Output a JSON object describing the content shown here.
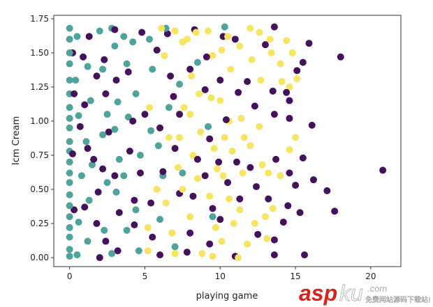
{
  "chart_data": {
    "type": "scatter",
    "title": "",
    "xlabel": "playing game",
    "ylabel": "Icm Cream",
    "xlim": [
      -1.05,
      22
    ],
    "ylim": [
      -0.066,
      1.775
    ],
    "xticks": [
      "0",
      "5",
      "10",
      "15",
      "20"
    ],
    "xtick_values": [
      0,
      5,
      10,
      15,
      20
    ],
    "yticks": [
      "0.00",
      "0.25",
      "0.50",
      "0.75",
      "1.00",
      "1.25",
      "1.50",
      "1.75"
    ],
    "ytick_values": [
      0,
      0.25,
      0.5,
      0.75,
      1.0,
      1.25,
      1.5,
      1.75
    ],
    "grid": false,
    "legend": "none",
    "series": [
      {
        "color": "#4ea39d",
        "points": [
          [
            0,
            1.68
          ],
          [
            0,
            1.6
          ],
          [
            0,
            1.5
          ],
          [
            0,
            1.42
          ],
          [
            0,
            1.3
          ],
          [
            0,
            1.2
          ],
          [
            0,
            1.1
          ],
          [
            0,
            1.02
          ],
          [
            0,
            0.95
          ],
          [
            0,
            0.85
          ],
          [
            0,
            0.78
          ],
          [
            0,
            0.7
          ],
          [
            0,
            0.62
          ],
          [
            0,
            0.55
          ],
          [
            0,
            0.46
          ],
          [
            0,
            0.38
          ],
          [
            0,
            0.3
          ],
          [
            0,
            0.22
          ],
          [
            0,
            0.15
          ],
          [
            0,
            0.06
          ],
          [
            0,
            0.01
          ],
          [
            0.5,
            1.62
          ],
          [
            0.4,
            1.3
          ],
          [
            0.6,
            1.04
          ],
          [
            0.8,
            0.6
          ],
          [
            0.6,
            0.26
          ],
          [
            0.5,
            0.02
          ],
          [
            1.2,
            1.4
          ],
          [
            1.4,
            1.15
          ],
          [
            1.1,
            0.85
          ],
          [
            1.5,
            0.68
          ],
          [
            1.3,
            0.42
          ],
          [
            1.2,
            0.12
          ],
          [
            2.0,
            1.66
          ],
          [
            2.2,
            1.38
          ],
          [
            2.5,
            1.05
          ],
          [
            2.2,
            0.9
          ],
          [
            2.5,
            0.55
          ],
          [
            2.3,
            0.2
          ],
          [
            2.8,
            1.68
          ],
          [
            3.0,
            1.55
          ],
          [
            3.2,
            1.14
          ],
          [
            3.0,
            0.94
          ],
          [
            3.3,
            0.72
          ],
          [
            3.1,
            0.48
          ],
          [
            2.8,
            0.03
          ],
          [
            3.6,
            1.62
          ],
          [
            3.8,
            1.42
          ],
          [
            3.9,
            1.03
          ],
          [
            3.6,
            0.6
          ],
          [
            3.8,
            0.2
          ],
          [
            4.2,
            1.58
          ],
          [
            4.4,
            1.2
          ],
          [
            4.7,
            0.75
          ],
          [
            4.4,
            0.35
          ],
          [
            4.6,
            0.05
          ],
          [
            5.3,
            1.6
          ],
          [
            5.5,
            1.38
          ],
          [
            5.4,
            0.93
          ],
          [
            5.9,
            0.82
          ],
          [
            6.2,
            0.6
          ],
          [
            6.0,
            0.28
          ],
          [
            6.4,
            1.68
          ],
          [
            6.6,
            1.1
          ],
          [
            7.3,
            1.27
          ],
          [
            7.5,
            0.62
          ],
          [
            7.0,
            0.08
          ],
          [
            8.5,
            1.43
          ],
          [
            9.2,
            0.96
          ],
          [
            10.3,
            1.69
          ],
          [
            9.5,
            0.3
          ]
        ]
      },
      {
        "color": "#45115c",
        "points": [
          [
            0.2,
            1.5
          ],
          [
            0.3,
            1.2
          ],
          [
            0.2,
            0.76
          ],
          [
            0.3,
            0.35
          ],
          [
            0.9,
            1.47
          ],
          [
            1.0,
            1.12
          ],
          [
            0.7,
            0.96
          ],
          [
            1.2,
            0.8
          ],
          [
            1.0,
            0.37
          ],
          [
            1.3,
            1.62
          ],
          [
            1.8,
            1.33
          ],
          [
            1.6,
            0.72
          ],
          [
            1.9,
            0.48
          ],
          [
            1.8,
            0.25
          ],
          [
            2.0,
            0.0
          ],
          [
            2.3,
            1.45
          ],
          [
            2.4,
            1.2
          ],
          [
            2.2,
            0.65
          ],
          [
            2.6,
            0.92
          ],
          [
            2.4,
            0.12
          ],
          [
            3.0,
            1.67
          ],
          [
            3.1,
            1.3
          ],
          [
            3.0,
            0.6
          ],
          [
            3.3,
            0.33
          ],
          [
            3.2,
            0.05
          ],
          [
            3.9,
            1.36
          ],
          [
            4.2,
            1.0
          ],
          [
            4.0,
            0.78
          ],
          [
            4.3,
            0.42
          ],
          [
            4.3,
            0.24
          ],
          [
            4.8,
            1.65
          ],
          [
            4.7,
            0.62
          ],
          [
            5.0,
            1.05
          ],
          [
            5.4,
            0.4
          ],
          [
            5.5,
            0.15
          ],
          [
            5.8,
            1.52
          ],
          [
            6.0,
            0.95
          ],
          [
            6.2,
            0.63
          ],
          [
            6.0,
            0.02
          ],
          [
            6.5,
            1.64
          ],
          [
            6.7,
            1.33
          ],
          [
            6.9,
            1.18
          ],
          [
            7.3,
            1.05
          ],
          [
            7.0,
            0.8
          ],
          [
            7.3,
            0.47
          ],
          [
            7.8,
            0.04
          ],
          [
            8.0,
            1.38
          ],
          [
            8.3,
            1.67
          ],
          [
            8.5,
            0.72
          ],
          [
            8.2,
            0.45
          ],
          [
            8.0,
            0.18
          ],
          [
            9.1,
            1.47
          ],
          [
            9.0,
            1.23
          ],
          [
            9.3,
            0.87
          ],
          [
            9.0,
            0.6
          ],
          [
            9.5,
            0.36
          ],
          [
            9.3,
            0.1
          ],
          [
            10.0,
            1.3
          ],
          [
            10.2,
            1.62
          ],
          [
            9.9,
            0.7
          ],
          [
            10.4,
            1.01
          ],
          [
            10.0,
            0.28
          ],
          [
            10.5,
            0.55
          ],
          [
            11.0,
            1.6
          ],
          [
            11.2,
            1.21
          ],
          [
            11.1,
            0.7
          ],
          [
            11.3,
            0.43
          ],
          [
            11.0,
            0.01
          ],
          [
            11.8,
            1.29
          ],
          [
            12.3,
            1.11
          ],
          [
            12.0,
            0.66
          ],
          [
            12.4,
            0.52
          ],
          [
            13.0,
            1.56
          ],
          [
            13.2,
            0.43
          ],
          [
            12.5,
            0.17
          ],
          [
            13.6,
            1.69
          ],
          [
            13.5,
            1.22
          ],
          [
            13.6,
            1.05
          ],
          [
            13.7,
            0.72
          ],
          [
            13.6,
            0.13
          ],
          [
            13.6,
            0.02
          ],
          [
            14.4,
            1.21
          ],
          [
            14.6,
            1.15
          ],
          [
            14.6,
            1.02
          ],
          [
            14.6,
            0.62
          ],
          [
            14.5,
            0.38
          ],
          [
            14.2,
            0.26
          ],
          [
            15.0,
            0.53
          ],
          [
            15.1,
            1.37
          ],
          [
            15.3,
            0.33
          ],
          [
            15.5,
            1.43
          ],
          [
            15.5,
            0.73
          ],
          [
            15.6,
            0.02
          ],
          [
            15.9,
            1.57
          ],
          [
            16.1,
            0.97
          ],
          [
            16.2,
            0.57
          ],
          [
            17.1,
            0.49
          ],
          [
            17.6,
            0.34
          ],
          [
            18.0,
            1.47
          ],
          [
            20.8,
            0.64
          ]
        ]
      },
      {
        "color": "#f7e460",
        "points": [
          [
            5.2,
            0.22
          ],
          [
            5.2,
            0.05
          ],
          [
            5.3,
            1.1
          ],
          [
            5.8,
            0.5
          ],
          [
            6.1,
            1.68
          ],
          [
            6.3,
            1.48
          ],
          [
            6.6,
            0.88
          ],
          [
            6.4,
            0.4
          ],
          [
            6.8,
            0.18
          ],
          [
            7.0,
            0.03
          ],
          [
            7.0,
            1.66
          ],
          [
            7.5,
            1.58
          ],
          [
            7.6,
            1.1
          ],
          [
            7.3,
            0.88
          ],
          [
            7.2,
            0.66
          ],
          [
            7.5,
            0.5
          ],
          [
            7.8,
            1.6
          ],
          [
            8.1,
            1.33
          ],
          [
            8.0,
            1.05
          ],
          [
            8.2,
            0.75
          ],
          [
            8.0,
            0.3
          ],
          [
            8.4,
            1.65
          ],
          [
            8.6,
            1.2
          ],
          [
            8.7,
            0.92
          ],
          [
            8.5,
            0.58
          ],
          [
            8.8,
            0.03
          ],
          [
            9.2,
            1.66
          ],
          [
            9.5,
            1.48
          ],
          [
            9.4,
            1.17
          ],
          [
            9.6,
            0.8
          ],
          [
            9.3,
            0.45
          ],
          [
            9.7,
            0.22
          ],
          [
            9.5,
            0.01
          ],
          [
            10.1,
            1.52
          ],
          [
            10.0,
            1.15
          ],
          [
            10.3,
            0.88
          ],
          [
            10.2,
            0.6
          ],
          [
            10.1,
            0.12
          ],
          [
            10.7,
            1.38
          ],
          [
            10.6,
            1.0
          ],
          [
            10.8,
            0.78
          ],
          [
            10.6,
            0.43
          ],
          [
            10.9,
            0.25
          ],
          [
            11.3,
            1.55
          ],
          [
            11.4,
            1.02
          ],
          [
            11.6,
            0.88
          ],
          [
            11.5,
            0.62
          ],
          [
            11.3,
            0.35
          ],
          [
            11.2,
            0.0
          ],
          [
            12.0,
            1.68
          ],
          [
            12.1,
            1.45
          ],
          [
            12.0,
            0.82
          ],
          [
            12.3,
            0.25
          ],
          [
            11.8,
            0.1
          ],
          [
            12.6,
            1.65
          ],
          [
            12.7,
            1.3
          ],
          [
            12.6,
            0.96
          ],
          [
            12.8,
            0.68
          ],
          [
            13.0,
            0.3
          ],
          [
            13.3,
            1.6
          ],
          [
            13.4,
            1.5
          ],
          [
            13.2,
            0.62
          ],
          [
            13.1,
            0.14
          ],
          [
            13.5,
            0.36
          ],
          [
            14.0,
            1.42
          ],
          [
            14.1,
            1.29
          ],
          [
            14.0,
            0.6
          ],
          [
            14.4,
            1.59
          ],
          [
            14.6,
            1.25
          ],
          [
            14.6,
            0.79
          ],
          [
            14.8,
            1.5
          ],
          [
            15.0,
            0.88
          ],
          [
            15.1,
            1.31
          ],
          [
            9.8,
            0.65
          ],
          [
            10.5,
            1.62
          ]
        ]
      }
    ]
  },
  "watermark": {
    "brand": "asp",
    "brand_suffix": "ku",
    "domain": ".com",
    "tagline": "免费网站源码下载站!"
  }
}
